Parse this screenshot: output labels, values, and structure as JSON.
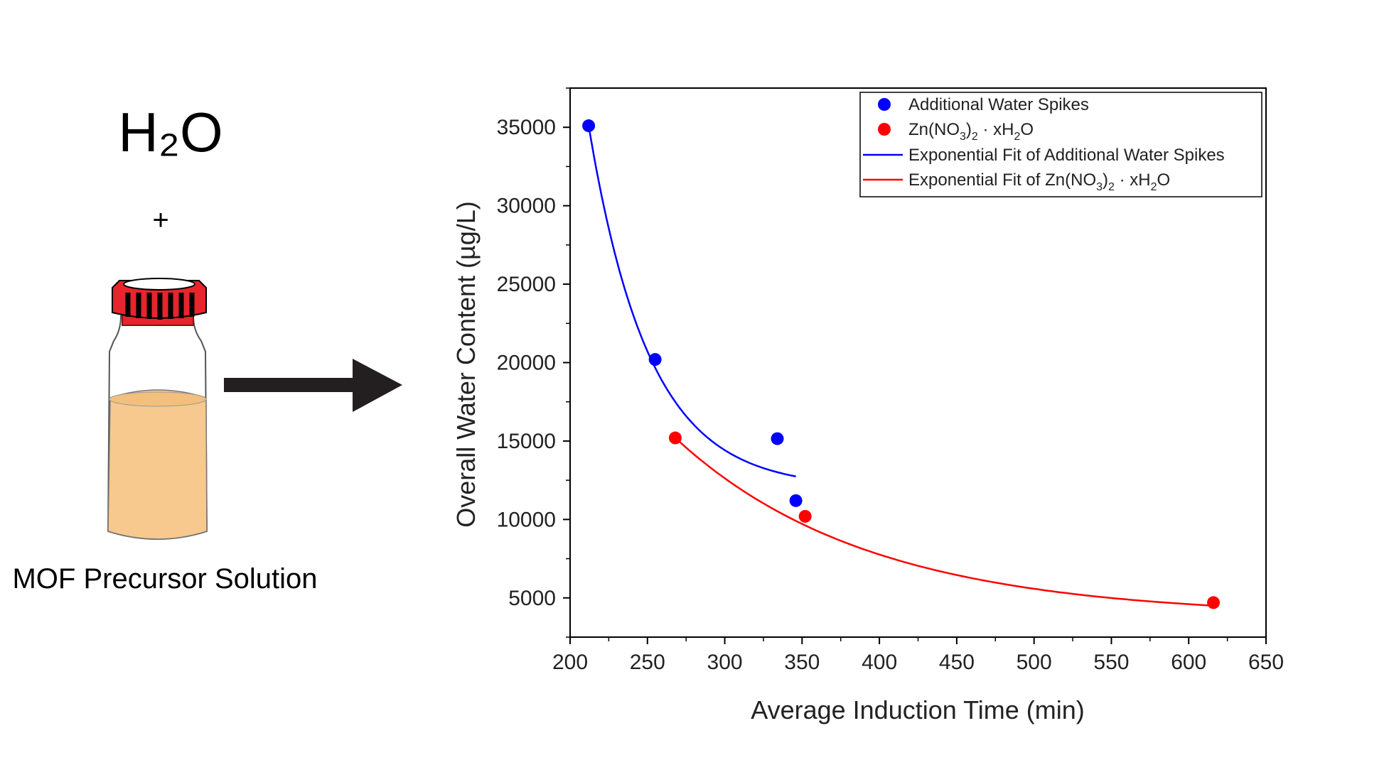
{
  "left_panel": {
    "water_formula": "H₂O",
    "plus": "+",
    "caption": "MOF Precursor Solution"
  },
  "colors": {
    "blue": "#0000ff",
    "red": "#ff0000",
    "vial_cap": "#e8242c",
    "vial_liquid": "#f7c98e",
    "arrow": "#231f20"
  },
  "chart_data": {
    "type": "scatter",
    "xlabel": "Average Induction Time (min)",
    "ylabel": "Overall Water Content (µg/L)",
    "xlim": [
      200,
      650
    ],
    "ylim": [
      2500,
      37500
    ],
    "x_ticks": [
      200,
      250,
      300,
      350,
      400,
      450,
      500,
      550,
      600,
      650
    ],
    "y_ticks": [
      5000,
      10000,
      15000,
      20000,
      25000,
      30000,
      35000
    ],
    "grid": false,
    "legend_position": "top-right",
    "series": [
      {
        "name": "Additional Water Spikes",
        "kind": "points",
        "color": "#0000ff",
        "points": [
          [
            212,
            35100
          ],
          [
            255,
            20200
          ],
          [
            334,
            15150
          ],
          [
            346,
            11200
          ]
        ]
      },
      {
        "name": "Zn(NO3)2 · xH2O",
        "kind": "points",
        "color": "#ff0000",
        "points": [
          [
            268,
            15200
          ],
          [
            352,
            10200
          ],
          [
            616,
            4700
          ]
        ]
      },
      {
        "name": "Exponential Fit of Additional Water Spikes",
        "kind": "line",
        "color": "#0000ff",
        "fit": {
          "y0": 12000,
          "A": 23100,
          "x0": 212,
          "t": 39,
          "x_from": 212,
          "x_to": 346
        }
      },
      {
        "name": "Exponential Fit of Zn(NO3)2 · xH2O",
        "kind": "line",
        "color": "#ff0000",
        "fit": {
          "y0": 3800,
          "A": 11400,
          "x0": 268,
          "t": 125,
          "x_from": 268,
          "x_to": 616
        }
      }
    ]
  }
}
